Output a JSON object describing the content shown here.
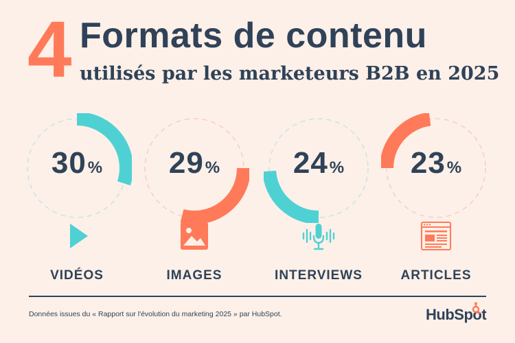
{
  "headline": {
    "number": "4",
    "title": "Formats de contenu",
    "subtitle": "utilisés par les marketeurs B2B en 2025"
  },
  "colors": {
    "background": "#fdf0e8",
    "navy": "#2f4258",
    "orange": "#ff7a59",
    "teal": "#4fd1d4",
    "ring_dash": "#c9e3e6",
    "ring_dash_warm": "#f4cfc2"
  },
  "chart_data": {
    "type": "pie",
    "title": "4 Formats de contenu utilisés par les marketeurs B2B en 2025",
    "categories": [
      "VIDÉOS",
      "IMAGES",
      "INTERVIEWS",
      "ARTICLES"
    ],
    "values": [
      30,
      29,
      24,
      23
    ],
    "unit": "%",
    "items": [
      {
        "label": "VIDÉOS",
        "value": 30,
        "value_text": "30",
        "color": "#4fd1d4",
        "start_deg": 0,
        "icon": "play-icon"
      },
      {
        "label": "IMAGES",
        "value": 29,
        "value_text": "29",
        "color": "#ff7a59",
        "start_deg": 90,
        "icon": "image-icon"
      },
      {
        "label": "INTERVIEWS",
        "value": 24,
        "value_text": "24",
        "color": "#4fd1d4",
        "start_deg": 180,
        "icon": "microphone-icon"
      },
      {
        "label": "ARTICLES",
        "value": 23,
        "value_text": "23",
        "color": "#ff7a59",
        "start_deg": 270,
        "icon": "article-icon"
      }
    ],
    "percent_sign": "%"
  },
  "footer": {
    "source": "Données issues du « Rapport sur l'évolution du marketing 2025 » par HubSpot.",
    "logo_text": "HubSpot"
  }
}
